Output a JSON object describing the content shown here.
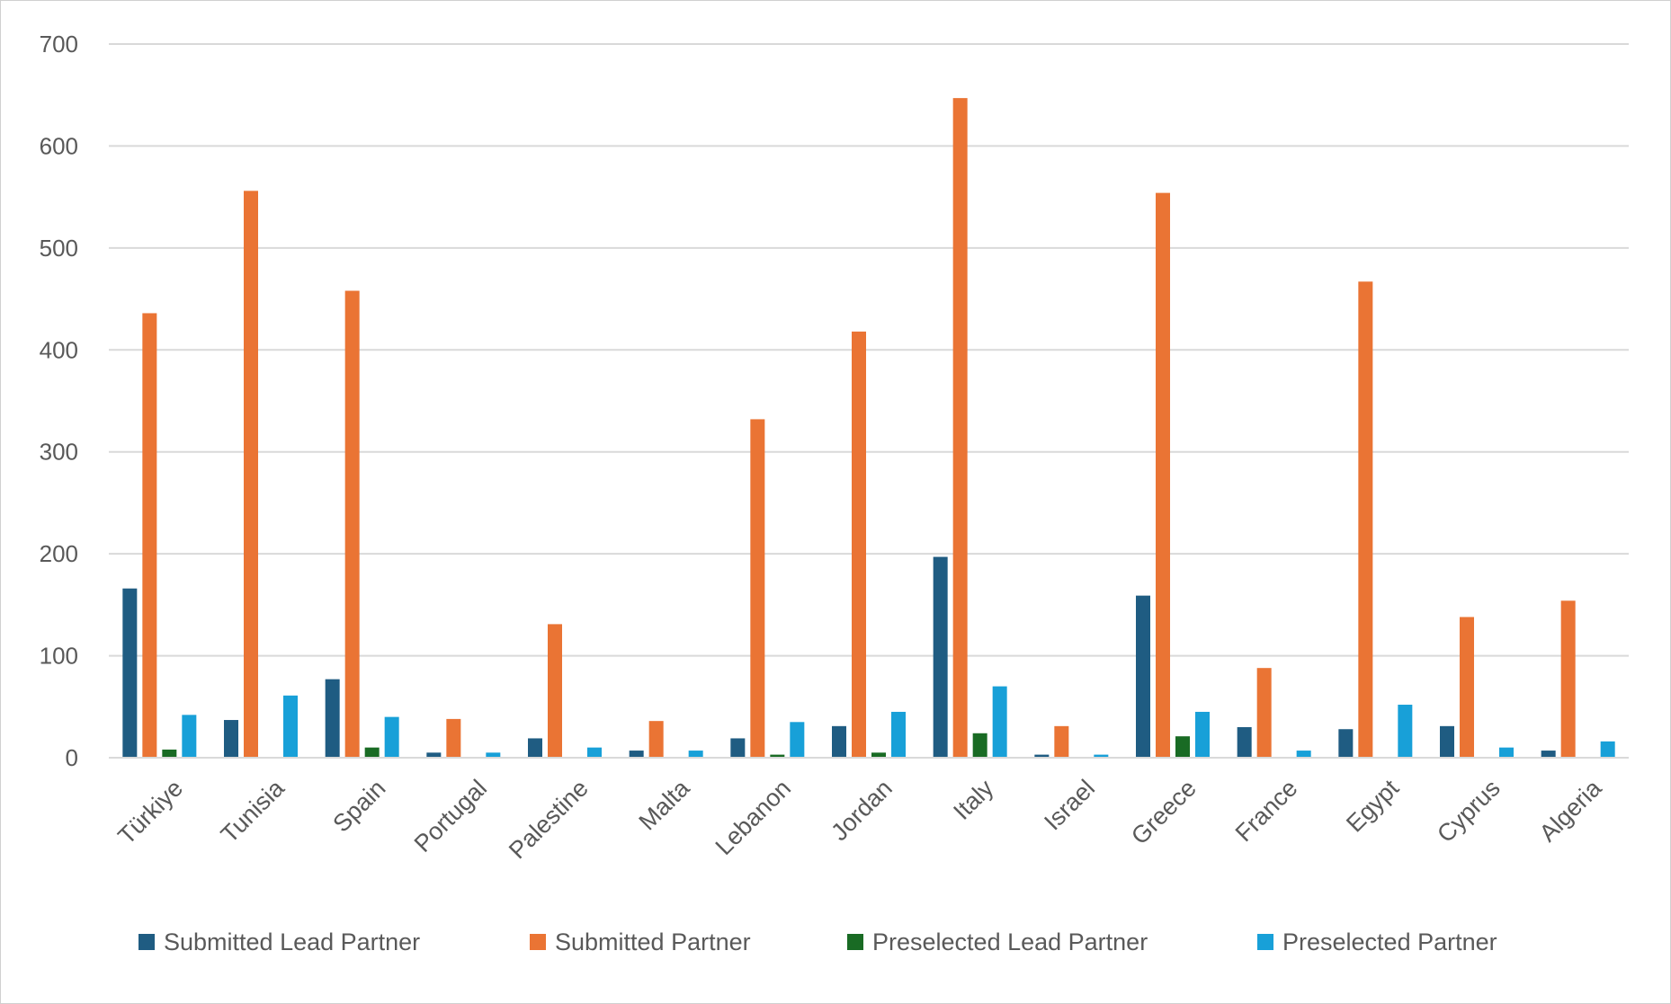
{
  "chart_data": {
    "type": "bar",
    "title": "",
    "xlabel": "",
    "ylabel": "",
    "ylim": [
      0,
      700
    ],
    "yticks": [
      0,
      100,
      200,
      300,
      400,
      500,
      600,
      700
    ],
    "grid": true,
    "legend_position": "bottom",
    "categories": [
      "Türkiye",
      "Tunisia",
      "Spain",
      "Portugal",
      "Palestine",
      "Malta",
      "Lebanon",
      "Jordan",
      "Italy",
      "Israel",
      "Greece",
      "France",
      "Egypt",
      "Cyprus",
      "Algeria"
    ],
    "series": [
      {
        "name": "Submitted Lead Partner",
        "color": "#1f5c82",
        "values": [
          166,
          37,
          77,
          5,
          19,
          7,
          19,
          31,
          197,
          3,
          159,
          30,
          28,
          31,
          7
        ]
      },
      {
        "name": "Submitted Partner",
        "color": "#ea7434",
        "values": [
          436,
          556,
          458,
          38,
          131,
          36,
          332,
          418,
          647,
          31,
          554,
          88,
          467,
          138,
          154
        ]
      },
      {
        "name": "Preselected Lead Partner",
        "color": "#196b24",
        "values": [
          8,
          0,
          10,
          0,
          0,
          0,
          3,
          5,
          24,
          0,
          21,
          0,
          0,
          0,
          0
        ]
      },
      {
        "name": "Preselected Partner",
        "color": "#18a0d8",
        "values": [
          42,
          61,
          40,
          5,
          10,
          7,
          35,
          45,
          70,
          3,
          45,
          7,
          52,
          10,
          16
        ]
      }
    ]
  }
}
